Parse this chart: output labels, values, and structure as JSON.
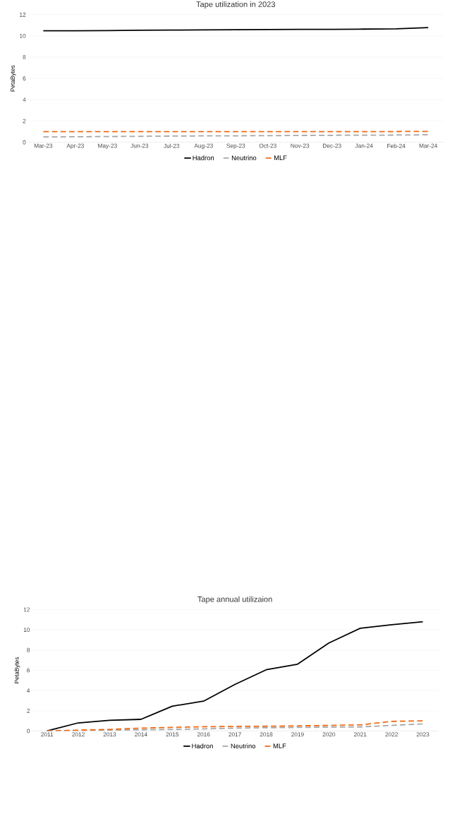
{
  "chart_data": [
    {
      "type": "line",
      "title": "Tape utilization in 2023",
      "ylabel": "PetaBytes",
      "categories": [
        "Mar-23",
        "Apr-23",
        "May-23",
        "Jun-23",
        "Jul-23",
        "Aug-23",
        "Sep-23",
        "Oct-23",
        "Nov-23",
        "Dec-23",
        "Jan-24",
        "Feb-24",
        "Mar-24"
      ],
      "series": [
        {
          "name": "Hadron",
          "color": "#000000",
          "line_style": "solid",
          "values": [
            10.48,
            10.49,
            10.5,
            10.53,
            10.55,
            10.57,
            10.58,
            10.6,
            10.61,
            10.62,
            10.64,
            10.66,
            10.78
          ]
        },
        {
          "name": "Neutrino",
          "color": "#a6a6a6",
          "line_style": "dashed",
          "values": [
            0.5,
            0.52,
            0.54,
            0.56,
            0.58,
            0.6,
            0.61,
            0.62,
            0.64,
            0.66,
            0.67,
            0.68,
            0.7
          ]
        },
        {
          "name": "MLF",
          "color": "#f06a14",
          "line_style": "dashed",
          "values": [
            1.0,
            1.0,
            1.0,
            1.0,
            1.0,
            1.0,
            1.0,
            1.0,
            1.0,
            1.0,
            1.0,
            1.01,
            1.02
          ]
        }
      ],
      "ylim": [
        0,
        12
      ],
      "yticks": [
        0,
        2,
        4,
        6,
        8,
        10,
        12
      ],
      "grid": "y",
      "legend": "bottom"
    },
    {
      "type": "line",
      "title": "Tape annual utilizaion",
      "ylabel": "PetaBytes",
      "categories": [
        "2011",
        "2012",
        "2013",
        "2014",
        "2015",
        "2016",
        "2017",
        "2018",
        "2019",
        "2020",
        "2021",
        "2022",
        "2023"
      ],
      "series": [
        {
          "name": "Hadron",
          "color": "#000000",
          "line_style": "solid",
          "values": [
            0,
            0.8,
            1.05,
            1.15,
            2.45,
            2.95,
            4.6,
            6.05,
            6.6,
            8.7,
            10.15,
            10.5,
            10.8
          ]
        },
        {
          "name": "Neutrino",
          "color": "#a6a6a6",
          "line_style": "dashed",
          "values": [
            0,
            0.05,
            0.08,
            0.12,
            0.15,
            0.2,
            0.28,
            0.32,
            0.35,
            0.38,
            0.4,
            0.55,
            0.7
          ]
        },
        {
          "name": "MLF",
          "color": "#f06a14",
          "line_style": "dashed",
          "values": [
            0,
            0.08,
            0.15,
            0.28,
            0.35,
            0.42,
            0.45,
            0.47,
            0.5,
            0.55,
            0.6,
            0.95,
            1.0
          ]
        }
      ],
      "ylim": [
        0,
        12
      ],
      "yticks": [
        0,
        2,
        4,
        6,
        8,
        10,
        12
      ],
      "grid": "y",
      "legend": "bottom"
    }
  ]
}
